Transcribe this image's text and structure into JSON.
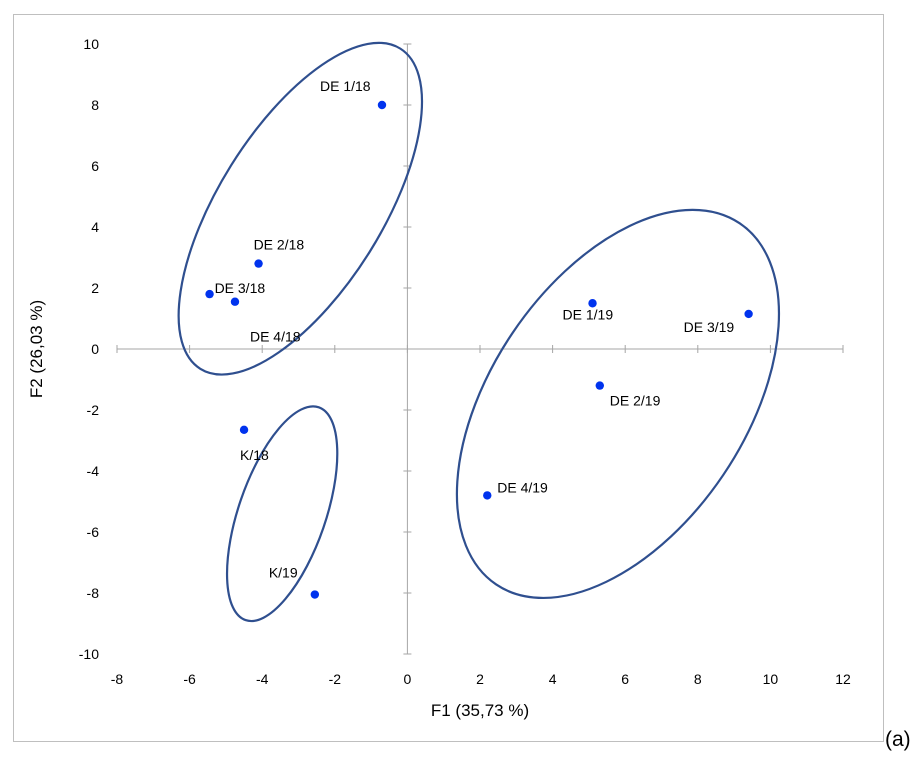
{
  "panel_label": "(a)",
  "chart_data": {
    "type": "scatter",
    "title": "",
    "xlabel": "F1 (35,73 %)",
    "ylabel": "F2 (26,03 %)",
    "xlim": [
      -8,
      12
    ],
    "ylim": [
      -10,
      10
    ],
    "x_ticks": [
      -8,
      -6,
      -4,
      -2,
      0,
      2,
      4,
      6,
      8,
      10,
      12
    ],
    "y_ticks": [
      -10,
      -8,
      -6,
      -4,
      -2,
      0,
      2,
      4,
      6,
      8,
      10
    ],
    "grid": false,
    "point_color": "#0033ee",
    "ellipse_color": "#2f4f8f",
    "axis_color": "#a6a6a6",
    "points": [
      {
        "label": "DE 1/18",
        "x": -0.7,
        "y": 8.0
      },
      {
        "label": "DE 2/18",
        "x": -4.1,
        "y": 2.8
      },
      {
        "label": "DE 3/18",
        "x": -5.45,
        "y": 1.8
      },
      {
        "label": "DE 4/18",
        "x": -4.75,
        "y": 1.55
      },
      {
        "label": "DE 1/19",
        "x": 5.1,
        "y": 1.5
      },
      {
        "label": "DE 2/19",
        "x": 5.3,
        "y": -1.2
      },
      {
        "label": "DE 3/19",
        "x": 9.4,
        "y": 1.15
      },
      {
        "label": "DE 4/19",
        "x": 2.2,
        "y": -4.8
      },
      {
        "label": "K/18",
        "x": -4.5,
        "y": -2.65
      },
      {
        "label": "K/19",
        "x": -2.55,
        "y": -8.05
      }
    ],
    "groups": [
      {
        "members": [
          "DE 1/18",
          "DE 2/18",
          "DE 3/18",
          "DE 4/18"
        ],
        "cx": -2.95,
        "cy": 4.6,
        "rx": 5.2,
        "ry": 2.25,
        "angle": 58
      },
      {
        "members": [
          "DE 1/19",
          "DE 2/19",
          "DE 3/19",
          "DE 4/19"
        ],
        "cx": 5.8,
        "cy": -1.8,
        "rx": 6.0,
        "ry": 3.5,
        "angle": 56
      },
      {
        "members": [
          "K/18",
          "K/19"
        ],
        "cx": -3.45,
        "cy": -5.4,
        "rx": 3.1,
        "ry": 1.2,
        "angle": 71
      }
    ]
  }
}
